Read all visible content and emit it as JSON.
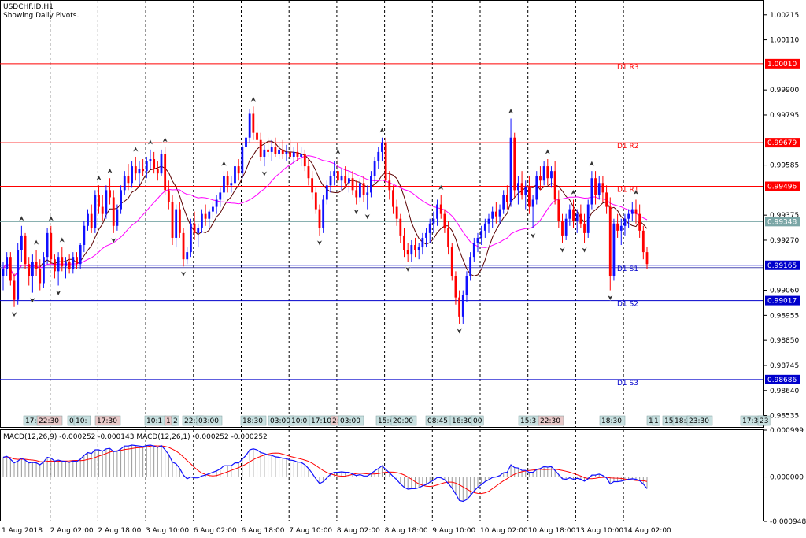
{
  "header": {
    "symbol_line": "USDCHF.ID,H1",
    "pivots_line": "Showing Daily Pivots."
  },
  "macd": {
    "label": "MACD(12,26,9) -0.000252 -0.000143 MACD(12,26,1) -0.000252 -0.000252"
  },
  "colors": {
    "bull": "#1010ff",
    "bear": "#ff0000",
    "ma_fast": "#5a0000",
    "ma_slow": "#ff00ff",
    "resistance": "#ff0000",
    "support": "#0000cc",
    "pivot": "#7aa6a6",
    "grid": "#000000",
    "macd_signal": "#ff0000",
    "macd_main": "#1010ff",
    "macd_hist": "#999999"
  },
  "chart_data": {
    "type": "candlestick",
    "price_axis": {
      "ylim": [
        0.98484,
        1.00277
      ],
      "ticks": [
        "1.00215",
        "1.00110",
        "0.99900",
        "0.99795",
        "0.99585",
        "0.99375",
        "0.99270",
        "0.99060",
        "0.98955",
        "0.98850",
        "0.98745",
        "0.98640",
        "0.98535"
      ]
    },
    "levels": [
      {
        "label": "D1 R3",
        "value": 1.0001,
        "tag": "1.00010",
        "kind": "resistance"
      },
      {
        "label": "D1 R2",
        "value": 0.99679,
        "tag": "0.99679",
        "kind": "resistance"
      },
      {
        "label": "D1 R1",
        "value": 0.99496,
        "tag": "0.99496",
        "kind": "resistance"
      },
      {
        "label": "",
        "value": 0.99348,
        "tag": "0.99348",
        "kind": "pivot"
      },
      {
        "label": "D1 S1",
        "value": 0.99165,
        "tag": "0.99165",
        "kind": "support"
      },
      {
        "label": "D1 S2",
        "value": 0.99017,
        "tag": "0.99017",
        "kind": "support"
      },
      {
        "label": "D1 S3",
        "value": 0.98686,
        "tag": "0.98686",
        "kind": "support"
      }
    ],
    "x_labels": [
      "1 Aug 2018",
      "2 Aug 02:00",
      "2 Aug 18:00",
      "3 Aug 10:00",
      "6 Aug 02:00",
      "6 Aug 18:00",
      "7 Aug 10:00",
      "8 Aug 02:00",
      "8 Aug 18:00",
      "9 Aug 10:00",
      "10 Aug 02:00",
      "10 Aug 18:00",
      "13 Aug 10:00",
      "14 Aug 02:00"
    ],
    "macd_axis": {
      "ylim": [
        -0.000948,
        0.000999
      ],
      "ticks": [
        "0.000999",
        "0.000000",
        "-0.000948"
      ]
    },
    "session_tags": [
      "17:",
      "22:30",
      "0",
      "10:",
      "17:30",
      "10:1",
      "17",
      "2",
      "22:3",
      "03:00",
      "18:30",
      "03:00",
      "10:0",
      "17:10",
      "2:00",
      "03:00",
      "15:4",
      "20:00",
      "08:45",
      "16:30",
      "00",
      "15:3",
      "22:30",
      "18:30",
      "10",
      "1",
      "15",
      "18:3",
      "23:30",
      "17:34",
      "23"
    ],
    "candles": [
      [
        0.9912,
        0.9918,
        0.9906,
        0.9915
      ],
      [
        0.9915,
        0.9922,
        0.9912,
        0.992
      ],
      [
        0.992,
        0.9922,
        0.9908,
        0.991
      ],
      [
        0.991,
        0.9913,
        0.9899,
        0.9902
      ],
      [
        0.9902,
        0.9926,
        0.99,
        0.9923
      ],
      [
        0.9923,
        0.9933,
        0.9918,
        0.9929
      ],
      [
        0.9929,
        0.993,
        0.9915,
        0.9917
      ],
      [
        0.9917,
        0.992,
        0.9908,
        0.9912
      ],
      [
        0.9912,
        0.9921,
        0.9905,
        0.9918
      ],
      [
        0.9918,
        0.9923,
        0.9912,
        0.9915
      ],
      [
        0.9915,
        0.9919,
        0.9906,
        0.9909
      ],
      [
        0.9909,
        0.9922,
        0.9907,
        0.992
      ],
      [
        0.992,
        0.9932,
        0.9917,
        0.993
      ],
      [
        0.993,
        0.9933,
        0.9917,
        0.9919
      ],
      [
        0.9919,
        0.9921,
        0.9911,
        0.9914
      ],
      [
        0.9914,
        0.9922,
        0.9908,
        0.992
      ],
      [
        0.992,
        0.9924,
        0.9914,
        0.9916
      ],
      [
        0.9916,
        0.992,
        0.9911,
        0.9918
      ],
      [
        0.9918,
        0.9921,
        0.9913,
        0.9915
      ],
      [
        0.9915,
        0.9922,
        0.9913,
        0.992
      ],
      [
        0.992,
        0.9922,
        0.9915,
        0.9917
      ],
      [
        0.9917,
        0.9926,
        0.9915,
        0.9925
      ],
      [
        0.9925,
        0.9935,
        0.9922,
        0.9933
      ],
      [
        0.9933,
        0.994,
        0.9931,
        0.9938
      ],
      [
        0.9938,
        0.9942,
        0.993,
        0.9932
      ],
      [
        0.9932,
        0.9948,
        0.993,
        0.9946
      ],
      [
        0.9946,
        0.995,
        0.9938,
        0.9941
      ],
      [
        0.9941,
        0.9946,
        0.9935,
        0.9938
      ],
      [
        0.9938,
        0.995,
        0.9936,
        0.9948
      ],
      [
        0.9948,
        0.9953,
        0.9942,
        0.9945
      ],
      [
        0.9945,
        0.9948,
        0.993,
        0.9933
      ],
      [
        0.9933,
        0.9942,
        0.9931,
        0.994
      ],
      [
        0.994,
        0.995,
        0.9938,
        0.9948
      ],
      [
        0.9948,
        0.9956,
        0.9946,
        0.9954
      ],
      [
        0.9954,
        0.9959,
        0.9948,
        0.9951
      ],
      [
        0.9951,
        0.996,
        0.9949,
        0.9958
      ],
      [
        0.9958,
        0.9962,
        0.9952,
        0.9955
      ],
      [
        0.9955,
        0.996,
        0.995,
        0.9957
      ],
      [
        0.9957,
        0.9961,
        0.9954,
        0.9956
      ],
      [
        0.9956,
        0.9962,
        0.9953,
        0.996
      ],
      [
        0.996,
        0.9965,
        0.9957,
        0.9961
      ],
      [
        0.9961,
        0.9964,
        0.9955,
        0.9957
      ],
      [
        0.9957,
        0.996,
        0.9952,
        0.9955
      ],
      [
        0.9955,
        0.9965,
        0.9954,
        0.9963
      ],
      [
        0.9963,
        0.9966,
        0.9946,
        0.9948
      ],
      [
        0.9948,
        0.9952,
        0.994,
        0.9943
      ],
      [
        0.9943,
        0.9946,
        0.9925,
        0.9928
      ],
      [
        0.9928,
        0.9942,
        0.9924,
        0.994
      ],
      [
        0.994,
        0.9943,
        0.9928,
        0.993
      ],
      [
        0.993,
        0.9932,
        0.9916,
        0.9919
      ],
      [
        0.9919,
        0.9924,
        0.9917,
        0.9922
      ],
      [
        0.9922,
        0.9936,
        0.992,
        0.9934
      ],
      [
        0.9934,
        0.9939,
        0.9927,
        0.993
      ],
      [
        0.993,
        0.9934,
        0.9924,
        0.9932
      ],
      [
        0.9932,
        0.994,
        0.993,
        0.9938
      ],
      [
        0.9938,
        0.9942,
        0.9933,
        0.9936
      ],
      [
        0.9936,
        0.994,
        0.9932,
        0.9939
      ],
      [
        0.9939,
        0.9943,
        0.9936,
        0.9941
      ],
      [
        0.9941,
        0.9946,
        0.9938,
        0.9944
      ],
      [
        0.9944,
        0.9949,
        0.9941,
        0.9947
      ],
      [
        0.9947,
        0.9956,
        0.9944,
        0.9954
      ],
      [
        0.9954,
        0.9956,
        0.9947,
        0.995
      ],
      [
        0.995,
        0.9954,
        0.9947,
        0.9951
      ],
      [
        0.9951,
        0.996,
        0.9949,
        0.9958
      ],
      [
        0.9958,
        0.9961,
        0.9952,
        0.9955
      ],
      [
        0.9955,
        0.9968,
        0.9953,
        0.9966
      ],
      [
        0.9966,
        0.9972,
        0.9962,
        0.997
      ],
      [
        0.997,
        0.9982,
        0.9968,
        0.998
      ],
      [
        0.998,
        0.9983,
        0.9969,
        0.9972
      ],
      [
        0.9972,
        0.9976,
        0.9966,
        0.9969
      ],
      [
        0.9969,
        0.9972,
        0.996,
        0.9962
      ],
      [
        0.9962,
        0.9967,
        0.9958,
        0.9965
      ],
      [
        0.9965,
        0.997,
        0.9962,
        0.9964
      ],
      [
        0.9964,
        0.9969,
        0.996,
        0.9966
      ],
      [
        0.9966,
        0.997,
        0.9962,
        0.9963
      ],
      [
        0.9963,
        0.9968,
        0.9961,
        0.9965
      ],
      [
        0.9965,
        0.9969,
        0.9961,
        0.9963
      ],
      [
        0.9963,
        0.9967,
        0.996,
        0.9964
      ],
      [
        0.9964,
        0.9969,
        0.9961,
        0.9962
      ],
      [
        0.9962,
        0.9966,
        0.9959,
        0.9964
      ],
      [
        0.9964,
        0.9968,
        0.996,
        0.9962
      ],
      [
        0.9962,
        0.9966,
        0.9958,
        0.9963
      ],
      [
        0.9963,
        0.9965,
        0.9956,
        0.9958
      ],
      [
        0.9958,
        0.9961,
        0.995,
        0.9953
      ],
      [
        0.9953,
        0.9956,
        0.9944,
        0.9947
      ],
      [
        0.9947,
        0.9949,
        0.9938,
        0.994
      ],
      [
        0.994,
        0.9942,
        0.9929,
        0.9932
      ],
      [
        0.9932,
        0.9946,
        0.993,
        0.9944
      ],
      [
        0.9944,
        0.9952,
        0.9942,
        0.995
      ],
      [
        0.995,
        0.9956,
        0.9947,
        0.9954
      ],
      [
        0.9954,
        0.996,
        0.995,
        0.9956
      ],
      [
        0.9956,
        0.9961,
        0.995,
        0.9952
      ],
      [
        0.9952,
        0.9957,
        0.9948,
        0.9954
      ],
      [
        0.9954,
        0.9958,
        0.9949,
        0.9951
      ],
      [
        0.9951,
        0.9956,
        0.9947,
        0.9953
      ],
      [
        0.9953,
        0.9956,
        0.9946,
        0.9948
      ],
      [
        0.9948,
        0.9952,
        0.9942,
        0.9945
      ],
      [
        0.9945,
        0.9953,
        0.9943,
        0.9951
      ],
      [
        0.9951,
        0.9954,
        0.9943,
        0.9946
      ],
      [
        0.9946,
        0.995,
        0.994,
        0.9947
      ],
      [
        0.9947,
        0.9956,
        0.9945,
        0.9954
      ],
      [
        0.9954,
        0.9962,
        0.9951,
        0.996
      ],
      [
        0.996,
        0.9966,
        0.9957,
        0.9964
      ],
      [
        0.9964,
        0.997,
        0.996,
        0.9968
      ],
      [
        0.9968,
        0.997,
        0.995,
        0.9952
      ],
      [
        0.9952,
        0.9956,
        0.9944,
        0.9948
      ],
      [
        0.9948,
        0.995,
        0.9938,
        0.9941
      ],
      [
        0.9941,
        0.9944,
        0.9933,
        0.9936
      ],
      [
        0.9936,
        0.9938,
        0.9926,
        0.9929
      ],
      [
        0.9929,
        0.9932,
        0.992,
        0.9923
      ],
      [
        0.9923,
        0.9926,
        0.9918,
        0.9921
      ],
      [
        0.9921,
        0.9927,
        0.9918,
        0.9925
      ],
      [
        0.9925,
        0.9928,
        0.992,
        0.9923
      ],
      [
        0.9923,
        0.9926,
        0.9919,
        0.9924
      ],
      [
        0.9924,
        0.993,
        0.9921,
        0.9928
      ],
      [
        0.9928,
        0.9932,
        0.9924,
        0.993
      ],
      [
        0.993,
        0.9936,
        0.9926,
        0.9934
      ],
      [
        0.9934,
        0.9939,
        0.993,
        0.9936
      ],
      [
        0.9936,
        0.9944,
        0.9933,
        0.9942
      ],
      [
        0.9942,
        0.9946,
        0.9936,
        0.9938
      ],
      [
        0.9938,
        0.994,
        0.993,
        0.9932
      ],
      [
        0.9932,
        0.9935,
        0.9921,
        0.9924
      ],
      [
        0.9924,
        0.9926,
        0.991,
        0.9912
      ],
      [
        0.9912,
        0.9914,
        0.99,
        0.9903
      ],
      [
        0.9903,
        0.9906,
        0.9892,
        0.9895
      ],
      [
        0.9895,
        0.9906,
        0.9892,
        0.9904
      ],
      [
        0.9904,
        0.9914,
        0.9901,
        0.9912
      ],
      [
        0.9912,
        0.9922,
        0.991,
        0.992
      ],
      [
        0.992,
        0.9928,
        0.9918,
        0.9926
      ],
      [
        0.9926,
        0.993,
        0.9922,
        0.9928
      ],
      [
        0.9928,
        0.9933,
        0.9925,
        0.9931
      ],
      [
        0.9931,
        0.9936,
        0.9928,
        0.9934
      ],
      [
        0.9934,
        0.9938,
        0.993,
        0.9936
      ],
      [
        0.9936,
        0.9941,
        0.9932,
        0.9939
      ],
      [
        0.9939,
        0.9943,
        0.9934,
        0.9937
      ],
      [
        0.9937,
        0.9942,
        0.9934,
        0.994
      ],
      [
        0.994,
        0.9948,
        0.9938,
        0.9946
      ],
      [
        0.9946,
        0.995,
        0.994,
        0.9943
      ],
      [
        0.9943,
        0.9978,
        0.9941,
        0.997
      ],
      [
        0.997,
        0.9972,
        0.9945,
        0.9948
      ],
      [
        0.9948,
        0.9954,
        0.9942,
        0.9951
      ],
      [
        0.9951,
        0.9956,
        0.9944,
        0.9946
      ],
      [
        0.9946,
        0.9952,
        0.994,
        0.9949
      ],
      [
        0.9949,
        0.9954,
        0.9938,
        0.9941
      ],
      [
        0.9941,
        0.9946,
        0.9932,
        0.9944
      ],
      [
        0.9944,
        0.9956,
        0.9942,
        0.9954
      ],
      [
        0.9954,
        0.9958,
        0.9948,
        0.9952
      ],
      [
        0.9952,
        0.996,
        0.995,
        0.9958
      ],
      [
        0.9958,
        0.9961,
        0.995,
        0.9953
      ],
      [
        0.9953,
        0.9958,
        0.9949,
        0.9956
      ],
      [
        0.9956,
        0.996,
        0.9942,
        0.9944
      ],
      [
        0.9944,
        0.9948,
        0.9932,
        0.9935
      ],
      [
        0.9935,
        0.9938,
        0.9926,
        0.9929
      ],
      [
        0.9929,
        0.9938,
        0.9927,
        0.9936
      ],
      [
        0.9936,
        0.9942,
        0.9933,
        0.994
      ],
      [
        0.994,
        0.9944,
        0.9932,
        0.9935
      ],
      [
        0.9935,
        0.994,
        0.993,
        0.9938
      ],
      [
        0.9938,
        0.9942,
        0.9932,
        0.9934
      ],
      [
        0.9934,
        0.9938,
        0.9926,
        0.993
      ],
      [
        0.993,
        0.9944,
        0.9928,
        0.9942
      ],
      [
        0.9942,
        0.9956,
        0.994,
        0.9953
      ],
      [
        0.9953,
        0.9956,
        0.9942,
        0.9946
      ],
      [
        0.9946,
        0.9954,
        0.9944,
        0.9951
      ],
      [
        0.9951,
        0.9954,
        0.9943,
        0.9947
      ],
      [
        0.9947,
        0.995,
        0.9938,
        0.9941
      ],
      [
        0.9941,
        0.9945,
        0.9906,
        0.9912
      ],
      [
        0.9912,
        0.9936,
        0.991,
        0.9934
      ],
      [
        0.9934,
        0.9938,
        0.9928,
        0.9931
      ],
      [
        0.9931,
        0.9936,
        0.9925,
        0.9933
      ],
      [
        0.9933,
        0.9938,
        0.9929,
        0.9936
      ],
      [
        0.9936,
        0.994,
        0.9932,
        0.9938
      ],
      [
        0.9938,
        0.9943,
        0.9935,
        0.994
      ],
      [
        0.994,
        0.9944,
        0.9934,
        0.9938
      ],
      [
        0.9938,
        0.9942,
        0.9928,
        0.9931
      ],
      [
        0.9931,
        0.9933,
        0.9919,
        0.9922
      ],
      [
        0.9922,
        0.9924,
        0.9915,
        0.9917
      ]
    ],
    "macd_main": [
      0.00042,
      0.00044,
      0.00038,
      0.0003,
      0.00034,
      0.0004,
      0.00036,
      0.0003,
      0.00031,
      0.0003,
      0.00026,
      0.00032,
      0.00042,
      0.0004,
      0.00034,
      0.00036,
      0.00034,
      0.00033,
      0.00031,
      0.00034,
      0.00033,
      0.00038,
      0.00046,
      0.00052,
      0.0005,
      0.00058,
      0.00058,
      0.00055,
      0.0006,
      0.00061,
      0.00054,
      0.00055,
      0.0006,
      0.00066,
      0.00066,
      0.00068,
      0.00067,
      0.00066,
      0.00065,
      0.00067,
      0.00068,
      0.00066,
      0.00063,
      0.00067,
      0.00058,
      0.00048,
      0.00032,
      0.00028,
      0.00018,
      4e-05,
      -4e-05,
      0.0,
      -2e-05,
      -2e-05,
      2e-05,
      4e-05,
      7e-05,
      0.0001,
      0.00013,
      0.00017,
      0.00024,
      0.00024,
      0.00024,
      0.0003,
      0.0003,
      0.00038,
      0.00046,
      0.00058,
      0.0006,
      0.00058,
      0.00052,
      0.0005,
      0.00047,
      0.00046,
      0.00043,
      0.00042,
      0.0004,
      0.00039,
      0.00036,
      0.00035,
      0.00032,
      0.00031,
      0.00026,
      0.00018,
      8e-05,
      -4e-05,
      -0.00014,
      -0.0001,
      -2e-05,
      6e-05,
      0.0001,
      0.0001,
      0.00011,
      0.0001,
      0.0001,
      6e-05,
      3e-05,
      5e-05,
      2e-05,
      2e-05,
      7e-05,
      0.00013,
      0.00018,
      0.00024,
      0.00016,
      9e-05,
      1e-05,
      -6e-05,
      -0.00015,
      -0.00022,
      -0.00026,
      -0.00025,
      -0.00025,
      -0.00023,
      -0.00019,
      -0.00016,
      -0.00011,
      -7e-05,
      -1e-05,
      -2e-05,
      -6e-05,
      -0.00014,
      -0.00024,
      -0.00036,
      -0.0005,
      -0.00052,
      -0.00048,
      -0.0004,
      -0.0003,
      -0.00022,
      -0.00016,
      -0.0001,
      -6e-05,
      -1e-05,
      0.0,
      3e-05,
      9e-05,
      0.0001,
      0.00026,
      0.0002,
      0.00019,
      0.00014,
      0.00014,
      0.0001,
      0.0001,
      0.00016,
      0.00018,
      0.00022,
      0.00021,
      0.00022,
      0.00014,
      5e-05,
      -4e-05,
      -5e-05,
      -2e-05,
      -5e-05,
      -3e-05,
      -5e-05,
      -9e-05,
      -4e-05,
      4e-05,
      4e-05,
      6e-05,
      3e-05,
      -2e-05,
      -0.00015,
      -0.0001,
      -0.0001,
      -9e-05,
      -7e-05,
      -5e-05,
      -4e-05,
      -5e-05,
      -8e-05,
      -0.00015,
      -0.00025
    ]
  }
}
